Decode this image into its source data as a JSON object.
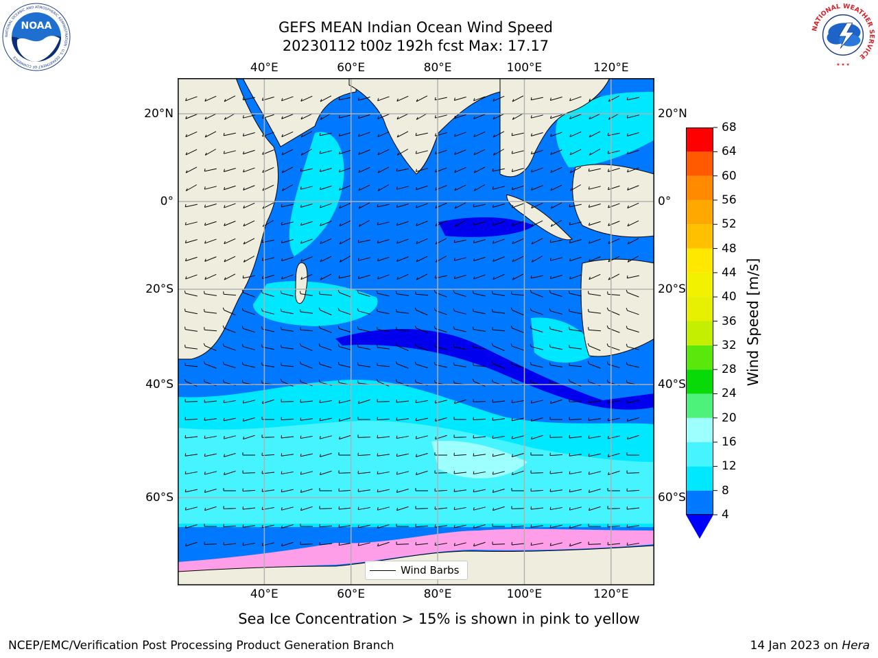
{
  "title": {
    "line1": "GEFS MEAN Indian Ocean Wind Speed",
    "line2": "20230112 t00z 192h fcst   Max: 17.17"
  },
  "logos": {
    "left": {
      "name": "noaa-logo",
      "text": "NOAA",
      "ring_text": "NATIONAL OCEANIC AND ATMOSPHERIC ADMINISTRATION · U.S. DEPARTMENT OF COMMERCE"
    },
    "right": {
      "name": "nws-logo",
      "ring_text": "NATIONAL WEATHER SERVICE"
    }
  },
  "map": {
    "lon_range": [
      20,
      130
    ],
    "lat_range": [
      -73,
      27
    ],
    "lon_ticks": [
      "40°E",
      "60°E",
      "80°E",
      "100°E",
      "120°E"
    ],
    "lon_tick_values": [
      40,
      60,
      80,
      100,
      120
    ],
    "lat_ticks": [
      "20°N",
      "0°",
      "20°S",
      "40°S",
      "60°S"
    ],
    "lat_tick_values": [
      20,
      0,
      -20,
      -40,
      -60
    ],
    "gridlines": true,
    "land_color": "#efeede",
    "max_wind": 17.17
  },
  "colorbar": {
    "label": "Wind Speed [m/s]",
    "ticks": [
      "68",
      "64",
      "60",
      "56",
      "52",
      "48",
      "44",
      "40",
      "36",
      "32",
      "28",
      "24",
      "20",
      "16",
      "12",
      "8",
      "4"
    ],
    "bins": [
      {
        "min": 4,
        "max": 8,
        "color": "#0078ff"
      },
      {
        "min": 8,
        "max": 12,
        "color": "#00e8ff"
      },
      {
        "min": 12,
        "max": 16,
        "color": "#46f4ff"
      },
      {
        "min": 16,
        "max": 20,
        "color": "#9effff"
      },
      {
        "min": 20,
        "max": 24,
        "color": "#4cf27a"
      },
      {
        "min": 24,
        "max": 28,
        "color": "#08da08"
      },
      {
        "min": 28,
        "max": 32,
        "color": "#5ae80c"
      },
      {
        "min": 32,
        "max": 36,
        "color": "#c4f000"
      },
      {
        "min": 36,
        "max": 40,
        "color": "#e6f000"
      },
      {
        "min": 40,
        "max": 44,
        "color": "#f2f200"
      },
      {
        "min": 44,
        "max": 48,
        "color": "#ffe800"
      },
      {
        "min": 48,
        "max": 52,
        "color": "#ffc000"
      },
      {
        "min": 52,
        "max": 56,
        "color": "#ffa800"
      },
      {
        "min": 56,
        "max": 60,
        "color": "#ff8a00"
      },
      {
        "min": 60,
        "max": 64,
        "color": "#ff5a00"
      },
      {
        "min": 64,
        "max": 68,
        "color": "#ff0000"
      }
    ],
    "extend_low_color": "#0000ff"
  },
  "legend": {
    "label": "Wind Barbs"
  },
  "ice_note": "Sea Ice Concentration > 15% is shown in pink to yellow",
  "footer": {
    "left": "NCEP/EMC/Verification Post Processing Product Generation Branch",
    "right_prefix": "14 Jan 2023 on ",
    "right_machine": "Hera"
  }
}
